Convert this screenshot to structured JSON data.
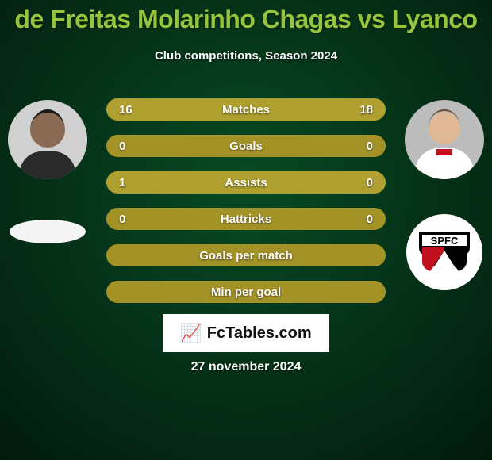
{
  "background_gradient": {
    "from": "#084a24",
    "to": "#021a0c"
  },
  "title": "de Freitas Molarinho Chagas vs Lyanco",
  "title_color": "#96c53d",
  "subtitle": "Club competitions, Season 2024",
  "subtitle_color": "#ffffff",
  "player_left": {
    "name": "de Freitas Molarinho Chagas"
  },
  "player_right": {
    "name": "Lyanco"
  },
  "club_right": {
    "name": "SPFC"
  },
  "bar_colors": {
    "base": "#a39327",
    "left_fill": "#b0a030",
    "right_fill": "#b0a030",
    "label_color": "#ffffff"
  },
  "stats": [
    {
      "label": "Matches",
      "left_val": "16",
      "right_val": "18",
      "left_pct": 47,
      "right_pct": 53
    },
    {
      "label": "Goals",
      "left_val": "0",
      "right_val": "0",
      "left_pct": 0,
      "right_pct": 0
    },
    {
      "label": "Assists",
      "left_val": "1",
      "right_val": "0",
      "left_pct": 100,
      "right_pct": 0
    },
    {
      "label": "Hattricks",
      "left_val": "0",
      "right_val": "0",
      "left_pct": 0,
      "right_pct": 0
    },
    {
      "label": "Goals per match",
      "left_val": "",
      "right_val": "",
      "left_pct": 0,
      "right_pct": 0
    },
    {
      "label": "Min per goal",
      "left_val": "",
      "right_val": "",
      "left_pct": 0,
      "right_pct": 0
    }
  ],
  "branding": {
    "site": "FcTables.com",
    "icon": "📈"
  },
  "date": "27 november 2024",
  "date_color": "#ffffff"
}
